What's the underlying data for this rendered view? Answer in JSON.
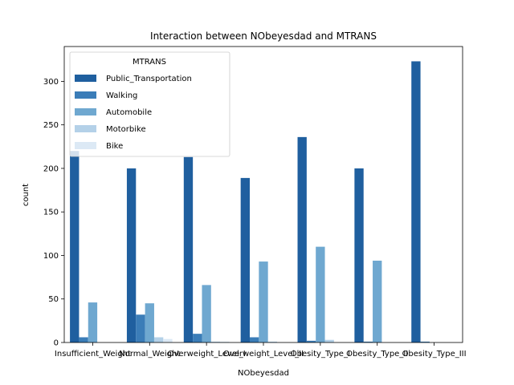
{
  "chart_data": {
    "type": "bar",
    "title": "Interaction between NObeyesdad and MTRANS",
    "xlabel": "NObeyesdad",
    "ylabel": "count",
    "ylim": [
      0,
      340
    ],
    "yticks": [
      0,
      50,
      100,
      150,
      200,
      250,
      300
    ],
    "categories": [
      "Insufficient_Weight",
      "Normal_Weight",
      "Overweight_Level_I",
      "Overweight_Level_II",
      "Obesity_Type_I",
      "Obesity_Type_II",
      "Obesity_Type_III"
    ],
    "legend": {
      "title": "MTRANS",
      "placement": "upper-left"
    },
    "series": [
      {
        "name": "Public_Transportation",
        "color": "#1f5f9f",
        "values": [
          220,
          200,
          213,
          189,
          236,
          200,
          323
        ]
      },
      {
        "name": "Walking",
        "color": "#3b7db8",
        "values": [
          6,
          32,
          10,
          6,
          2,
          1,
          1
        ]
      },
      {
        "name": "Automobile",
        "color": "#6fa8d0",
        "values": [
          46,
          45,
          66,
          93,
          110,
          94,
          0
        ]
      },
      {
        "name": "Motorbike",
        "color": "#b4d1e8",
        "values": [
          0,
          6,
          1,
          1,
          3,
          0,
          0
        ]
      },
      {
        "name": "Bike",
        "color": "#dce9f5",
        "values": [
          0,
          4,
          1,
          0,
          0,
          0,
          0
        ]
      }
    ]
  }
}
